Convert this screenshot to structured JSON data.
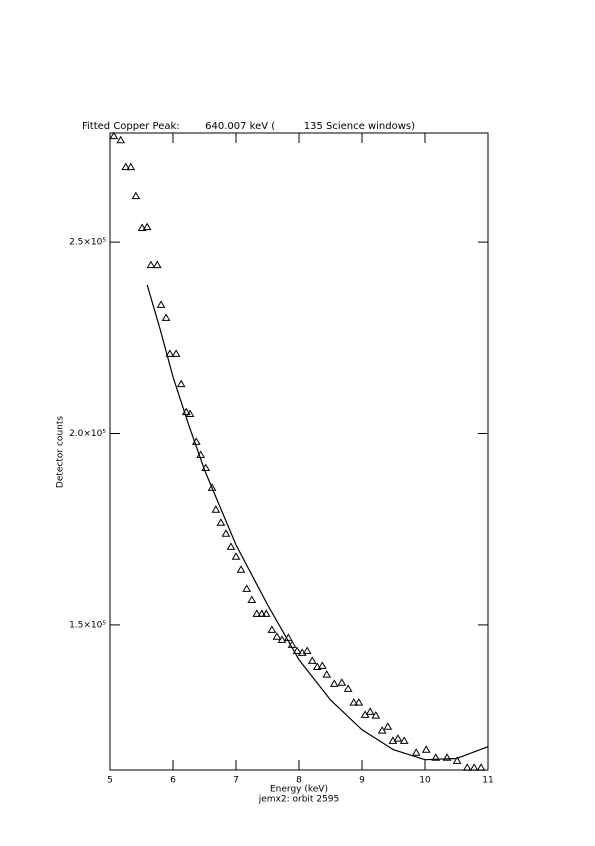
{
  "chart_data": {
    "type": "scatter",
    "title": "Fitted Copper Peak:        640.007 keV (         135 Science windows)",
    "xlabel": "Energy (keV)",
    "subtitle": "jemx2: orbit 2595",
    "ylabel": "Detector counts",
    "xlim": [
      5,
      11
    ],
    "ylim": [
      112100,
      278500
    ],
    "xticks": [
      5,
      6,
      7,
      8,
      9,
      10,
      11
    ],
    "yticks": [
      {
        "value": 150000,
        "label": "1.5×10⁵"
      },
      {
        "value": 200000,
        "label": "2.0×10⁵"
      },
      {
        "value": 250000,
        "label": "2.5×10⁵"
      }
    ],
    "series": [
      {
        "mode": "markers",
        "color": "#000000",
        "x": [
          5.06,
          5.17,
          5.25,
          5.33,
          5.41,
          5.51,
          5.59,
          5.65,
          5.75,
          5.81,
          5.89,
          5.95,
          6.05,
          6.13,
          6.21,
          6.27,
          6.37,
          6.44,
          6.52,
          6.62,
          6.68,
          6.76,
          6.84,
          6.92,
          7.0,
          7.08,
          7.17,
          7.25,
          7.33,
          7.41,
          7.48,
          7.57,
          7.65,
          7.73,
          7.83,
          7.89,
          7.97,
          8.05,
          8.13,
          8.21,
          8.29,
          8.37,
          8.44,
          8.56,
          8.68,
          8.78,
          8.87,
          8.95,
          9.05,
          9.13,
          9.22,
          9.32,
          9.41,
          9.49,
          9.57,
          9.67,
          9.86,
          10.02,
          10.17,
          10.35,
          10.51,
          10.67,
          10.78,
          10.89
        ],
        "values": [
          277700,
          276600,
          269600,
          269600,
          262000,
          253700,
          253900,
          244000,
          244000,
          233600,
          230200,
          220800,
          220800,
          212900,
          205600,
          205100,
          197800,
          194400,
          191000,
          185800,
          180100,
          176700,
          173800,
          170400,
          167800,
          164400,
          159400,
          156500,
          152900,
          152900,
          152900,
          148700,
          146900,
          146100,
          146600,
          144800,
          143200,
          142700,
          143200,
          140600,
          139000,
          139300,
          137000,
          134600,
          134900,
          133300,
          129700,
          129700,
          126500,
          127300,
          126300,
          122400,
          123400,
          119700,
          120300,
          119700,
          116600,
          117400,
          115300,
          115300,
          114500,
          112700,
          112700,
          112700
        ]
      },
      {
        "mode": "line",
        "color": "#000000",
        "x": [
          5.59,
          5.8,
          6.0,
          6.25,
          6.5,
          7.0,
          7.5,
          8.0,
          8.5,
          9.0,
          9.5,
          10.0,
          10.5,
          11.0
        ],
        "values": [
          238800,
          227000,
          214800,
          202200,
          190500,
          170900,
          155300,
          140900,
          130400,
          122600,
          117400,
          114800,
          115100,
          118200
        ]
      }
    ]
  }
}
